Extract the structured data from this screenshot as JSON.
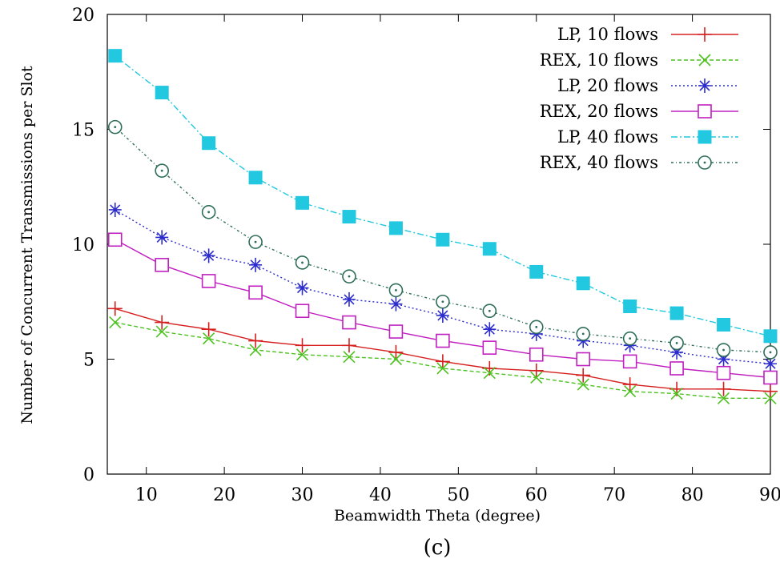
{
  "chart_data": {
    "type": "line",
    "title": "",
    "caption": "(c)",
    "xlabel": "Beamwidth Theta (degree)",
    "ylabel": "Number of Concurrent Transmissions per Slot",
    "xlim": [
      5,
      90
    ],
    "ylim": [
      0,
      20
    ],
    "xticks": [
      10,
      20,
      30,
      40,
      50,
      60,
      70,
      80,
      90
    ],
    "yticks": [
      0,
      5,
      10,
      15,
      20
    ],
    "grid": false,
    "legend_position": "top-right",
    "x": [
      6,
      12,
      18,
      24,
      30,
      36,
      42,
      48,
      54,
      60,
      66,
      72,
      78,
      84,
      90
    ],
    "series": [
      {
        "name": "LP,  10 flows",
        "color": "#d62020",
        "marker": "plus",
        "dash": "",
        "values": [
          7.2,
          6.6,
          6.3,
          5.8,
          5.6,
          5.6,
          5.3,
          4.9,
          4.6,
          4.5,
          4.3,
          3.9,
          3.7,
          3.7,
          3.6
        ]
      },
      {
        "name": "REX, 10 flows",
        "color": "#4cc21e",
        "marker": "x",
        "dash": "5,3",
        "values": [
          6.6,
          6.2,
          5.9,
          5.4,
          5.2,
          5.1,
          5.0,
          4.6,
          4.4,
          4.2,
          3.9,
          3.6,
          3.5,
          3.3,
          3.3
        ]
      },
      {
        "name": "LP,  20 flows",
        "color": "#2c2ccc",
        "marker": "star",
        "dash": "2,3",
        "values": [
          11.5,
          10.3,
          9.5,
          9.1,
          8.1,
          7.6,
          7.4,
          6.9,
          6.3,
          6.1,
          5.8,
          5.6,
          5.3,
          5.0,
          4.8
        ]
      },
      {
        "name": "REX, 20 flows",
        "color": "#c020c0",
        "marker": "square-open",
        "dash": "",
        "values": [
          10.2,
          9.1,
          8.4,
          7.9,
          7.1,
          6.6,
          6.2,
          5.8,
          5.5,
          5.2,
          5.0,
          4.9,
          4.6,
          4.4,
          4.2
        ]
      },
      {
        "name": "LP,  40 flows",
        "color": "#22c8e0",
        "marker": "square-filled",
        "dash": "8,3,2,3",
        "values": [
          18.2,
          16.6,
          14.4,
          12.9,
          11.8,
          11.2,
          10.7,
          10.2,
          9.8,
          8.8,
          8.3,
          7.3,
          7.0,
          6.5,
          6.0
        ]
      },
      {
        "name": "REX, 40 flows",
        "color": "#2e6e58",
        "marker": "circle-dot",
        "dash": "3,3,1,3",
        "values": [
          15.1,
          13.2,
          11.4,
          10.1,
          9.2,
          8.6,
          8.0,
          7.5,
          7.1,
          6.4,
          6.1,
          5.9,
          5.7,
          5.4,
          5.3
        ]
      }
    ]
  }
}
